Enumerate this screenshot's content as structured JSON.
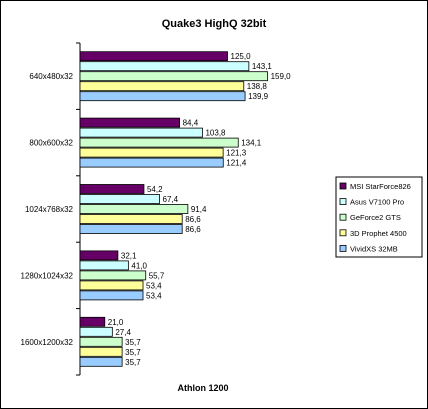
{
  "chart_data": {
    "type": "bar",
    "orientation": "horizontal",
    "title": "Quake3 HighQ 32bit",
    "xlabel": "Athlon 1200",
    "ylabel": "",
    "categories": [
      "640x480x32",
      "800x600x32",
      "1024x768x32",
      "1280x1024x32",
      "1600x1200x32"
    ],
    "xlim": [
      0,
      200
    ],
    "grid": false,
    "legend_position": "right",
    "series": [
      {
        "name": "MSI StarForce826",
        "color": "#660066",
        "values": [
          125.0,
          84.4,
          54.2,
          32.1,
          21.0
        ],
        "labels": [
          "125,0",
          "84,4",
          "54,2",
          "32,1",
          "21,0"
        ]
      },
      {
        "name": "Asus V7100 Pro",
        "color": "#ccffff",
        "values": [
          143.1,
          103.8,
          67.4,
          41.0,
          27.4
        ],
        "labels": [
          "143,1",
          "103,8",
          "67,4",
          "41,0",
          "27,4"
        ]
      },
      {
        "name": "GeForce2 GTS",
        "color": "#ccffcc",
        "values": [
          159.0,
          134.1,
          91.4,
          55.7,
          35.7
        ],
        "labels": [
          "159,0",
          "134,1",
          "91,4",
          "55,7",
          "35,7"
        ]
      },
      {
        "name": "3D Prophet 4500",
        "color": "#ffff99",
        "values": [
          138.8,
          121.3,
          86.6,
          53.4,
          35.7
        ],
        "labels": [
          "138,8",
          "121,3",
          "86,6",
          "53,4",
          "35,7"
        ]
      },
      {
        "name": "VividXS 32MB",
        "color": "#99ccff",
        "values": [
          139.9,
          121.4,
          86.6,
          53.4,
          35.7
        ],
        "labels": [
          "139,9",
          "121,4",
          "86,6",
          "53,4",
          "35,7"
        ]
      }
    ]
  }
}
